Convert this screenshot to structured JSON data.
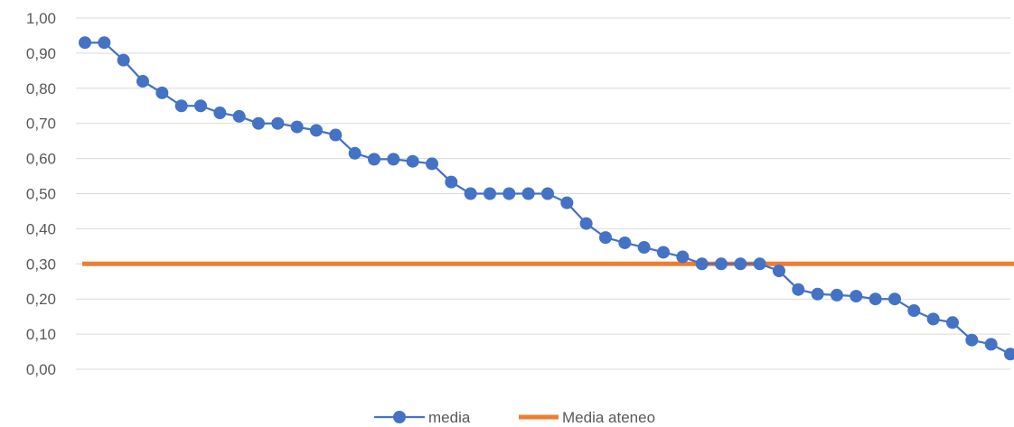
{
  "chart_data": {
    "type": "line",
    "title": "",
    "xlabel": "",
    "ylabel": "",
    "ylim": [
      0,
      1
    ],
    "y_ticks": [
      "0,00",
      "0,10",
      "0,20",
      "0,30",
      "0,40",
      "0,50",
      "0,60",
      "0,70",
      "0,80",
      "0,90",
      "1,00"
    ],
    "grid": "horizontal",
    "legend_position": "bottom",
    "series": [
      {
        "name": "media",
        "color": "#4472C4",
        "marker": "circle",
        "values": [
          0.93,
          0.93,
          0.88,
          0.82,
          0.787,
          0.75,
          0.75,
          0.73,
          0.72,
          0.7,
          0.7,
          0.69,
          0.68,
          0.667,
          0.615,
          0.598,
          0.598,
          0.592,
          0.585,
          0.533,
          0.5,
          0.5,
          0.5,
          0.5,
          0.5,
          0.474,
          0.415,
          0.375,
          0.36,
          0.347,
          0.333,
          0.32,
          0.3,
          0.3,
          0.3,
          0.3,
          0.28,
          0.227,
          0.214,
          0.211,
          0.208,
          0.2,
          0.2,
          0.167,
          0.143,
          0.133,
          0.083,
          0.071,
          0.043
        ]
      },
      {
        "name": "Media ateneo",
        "color": "#ED7D31",
        "marker": "none",
        "constant": 0.3
      }
    ]
  }
}
